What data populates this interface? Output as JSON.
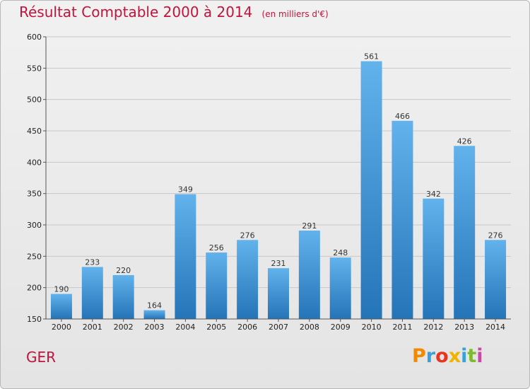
{
  "chart_data": {
    "type": "bar",
    "title": "Résultat Comptable 2000 à 2014",
    "unit_label": "(en milliers d'€)",
    "categories": [
      "2000",
      "2001",
      "2002",
      "2003",
      "2004",
      "2005",
      "2006",
      "2007",
      "2008",
      "2009",
      "2010",
      "2011",
      "2012",
      "2013",
      "2014"
    ],
    "values": [
      190,
      233,
      220,
      164,
      349,
      256,
      276,
      231,
      291,
      248,
      561,
      466,
      342,
      426,
      276
    ],
    "ylim": [
      150,
      600
    ],
    "yticks": [
      150,
      200,
      250,
      300,
      350,
      400,
      450,
      500,
      550,
      600
    ],
    "xlabel": "",
    "ylabel": "",
    "grid": true,
    "bar_color": "#3d8fd3"
  },
  "commune": "GER",
  "logo": {
    "letters": [
      "P",
      "r",
      "o",
      "x",
      "i",
      "t",
      "i"
    ],
    "colors": [
      "#f08a00",
      "#3aa0dc",
      "#e8351f",
      "#f0b400",
      "#3aa0dc",
      "#7fba2c",
      "#c94aa0"
    ]
  },
  "colors": {
    "title": "#c0143c",
    "bar_light": "#6ab8ee",
    "bar_dark": "#2474b8"
  }
}
